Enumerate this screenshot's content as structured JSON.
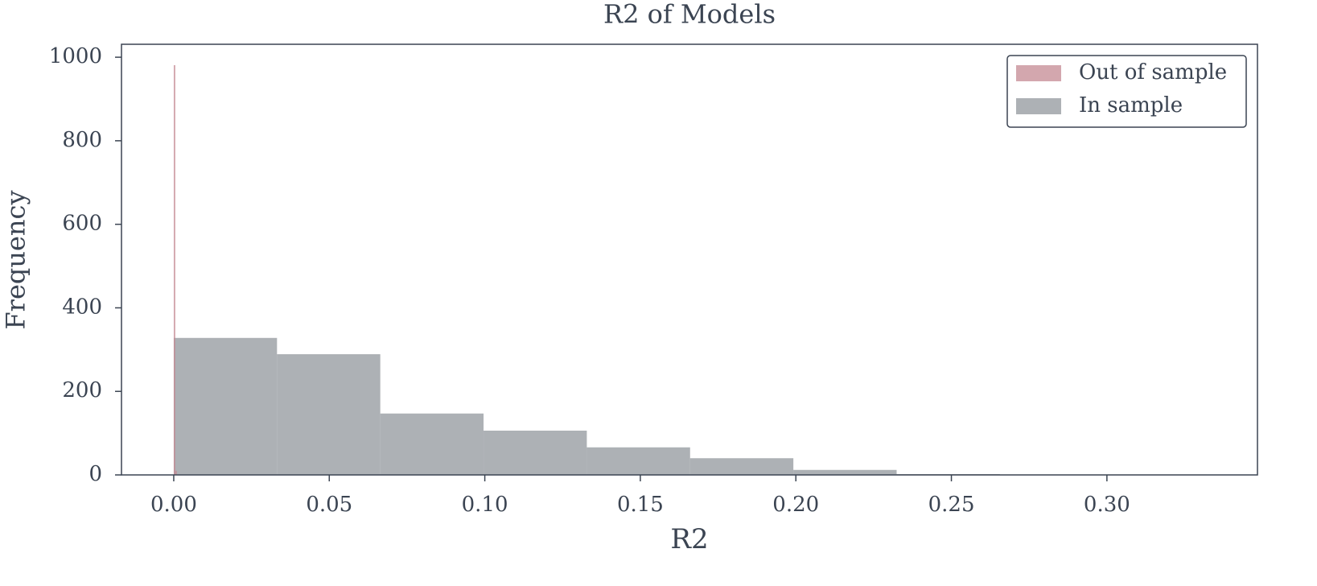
{
  "chart_data": {
    "type": "histogram",
    "title": "R2 of Models",
    "x_label": "R2",
    "y_label": "Frequency",
    "series": [
      {
        "name": "Out of sample",
        "color": "#c48a93",
        "opacity": 0.75,
        "bins": [
          0,
          0.0005,
          0.001
        ],
        "values": [
          981,
          10
        ]
      },
      {
        "name": "In sample",
        "color": "#8a9095",
        "opacity": 0.7,
        "bins": [
          0,
          0.0332,
          0.0664,
          0.0996,
          0.1328,
          0.166,
          0.1992,
          0.2324,
          0.2656,
          0.2988,
          0.332
        ],
        "values": [
          328,
          289,
          147,
          106,
          66,
          40,
          12,
          2,
          1,
          1
        ]
      }
    ],
    "xlim": [
      -0.0168,
      0.3484
    ],
    "ylim": [
      0,
      1031
    ],
    "xticks": [
      {
        "value": 0,
        "label": "0.00"
      },
      0.05,
      {
        "value": 0.1,
        "label": "0.10"
      },
      0.15,
      {
        "value": 0.2,
        "label": "0.20"
      },
      0.25,
      {
        "value": 0.3,
        "label": "0.30"
      }
    ],
    "yticks": [
      0,
      200,
      400,
      600,
      800,
      1000
    ],
    "legend": "upper right"
  }
}
